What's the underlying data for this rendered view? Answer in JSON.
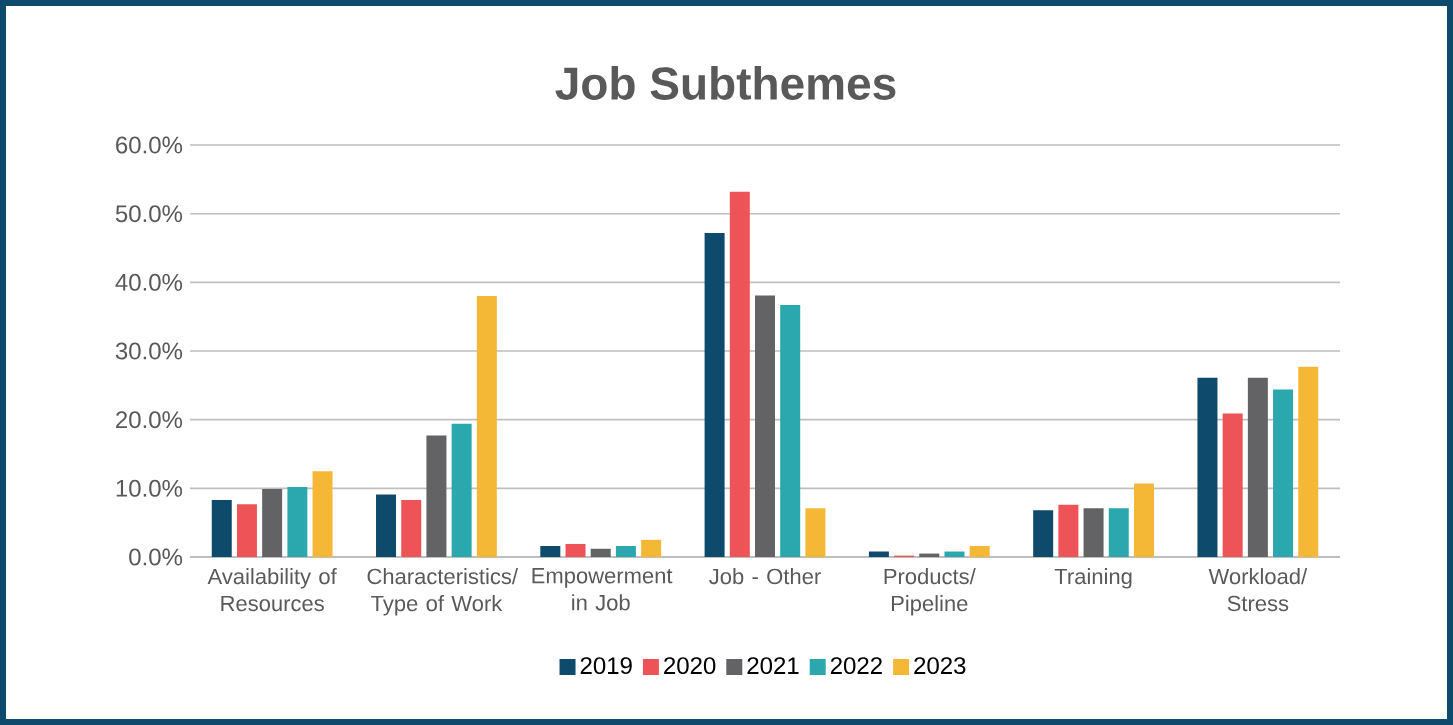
{
  "chart_data": {
    "type": "bar",
    "title": "Job Subthemes",
    "categories": [
      "Availability of Resources",
      "Characteristics/ Type of Work",
      "Empowerment in Job",
      "Job - Other",
      "Products/ Pipeline",
      "Training",
      "Workload/ Stress"
    ],
    "series": [
      {
        "name": "2019",
        "color": "#0d4a6b",
        "values": [
          8.3,
          9.1,
          1.6,
          47.2,
          0.8,
          6.8,
          26.1
        ]
      },
      {
        "name": "2020",
        "color": "#ee5457",
        "values": [
          7.7,
          8.3,
          1.9,
          53.2,
          0.2,
          7.6,
          20.9
        ]
      },
      {
        "name": "2021",
        "color": "#636365",
        "values": [
          9.9,
          17.7,
          1.2,
          38.1,
          0.5,
          7.1,
          26.1
        ]
      },
      {
        "name": "2022",
        "color": "#2ba8ae",
        "values": [
          10.2,
          19.4,
          1.6,
          36.7,
          0.8,
          7.1,
          24.4
        ]
      },
      {
        "name": "2023",
        "color": "#f5b736",
        "values": [
          12.5,
          38.0,
          2.5,
          7.1,
          1.6,
          10.7,
          27.7
        ]
      }
    ],
    "ylim": [
      0,
      60
    ],
    "yticks": [
      {
        "value": 0,
        "label": "0.0%"
      },
      {
        "value": 10,
        "label": "10.0%"
      },
      {
        "value": 20,
        "label": "20.0%"
      },
      {
        "value": 30,
        "label": "30.0%"
      },
      {
        "value": 40,
        "label": "40.0%"
      },
      {
        "value": 50,
        "label": "50.0%"
      },
      {
        "value": 60,
        "label": "60.0%"
      }
    ],
    "grid": "y",
    "legend": "bottom"
  }
}
